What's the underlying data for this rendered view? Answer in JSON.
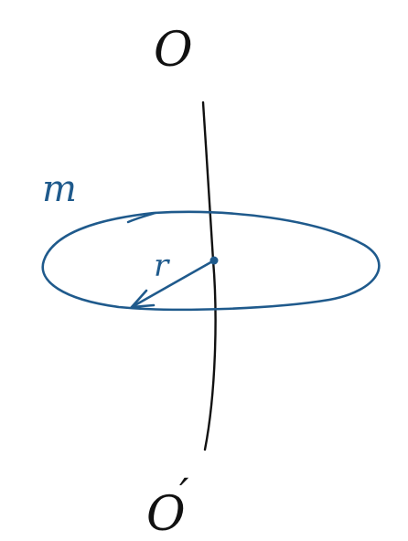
{
  "labels": {
    "axis_top": "O",
    "axis_bottom": "O",
    "axis_bottom_prime": "′",
    "mass": "m",
    "radius": "r"
  },
  "colors": {
    "ink_black": "#111111",
    "ink_blue": "#1f5a8c"
  }
}
